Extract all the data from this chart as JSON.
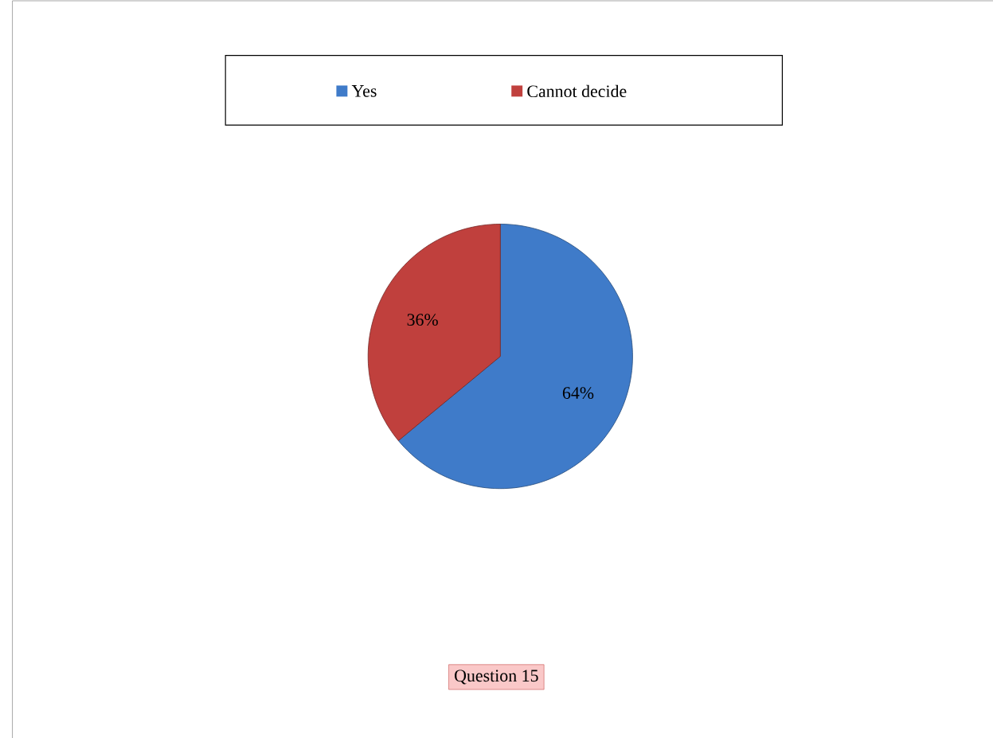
{
  "chart_data": {
    "type": "pie",
    "categories": [
      "Yes",
      "Cannot decide"
    ],
    "values": [
      64,
      36
    ],
    "colors": [
      "#3f7bc9",
      "#c0403d"
    ],
    "value_labels": [
      "64%",
      "36%"
    ],
    "legend": "top",
    "annotations": [
      "Question 15"
    ]
  }
}
